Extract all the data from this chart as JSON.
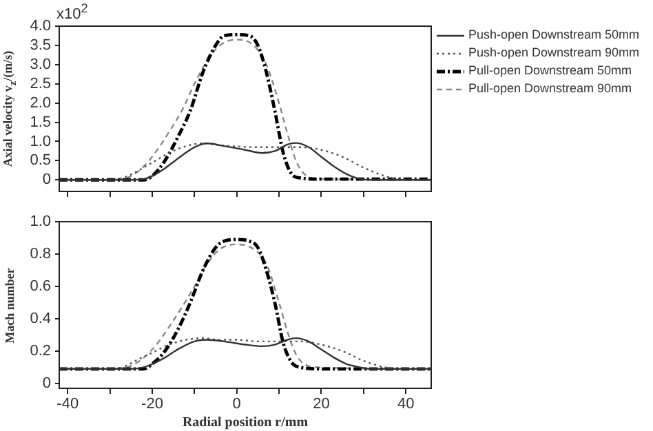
{
  "chart_data": [
    {
      "type": "line",
      "ylabel": "Axial velocity v$_{z}$/(m/s)",
      "annotations": [
        "x10$^{2}$"
      ],
      "xlim": [
        -42,
        46
      ],
      "xticks": [
        {
          "value": -40,
          "label": null
        },
        {
          "value": -30,
          "label": null
        },
        {
          "value": -20,
          "label": null
        },
        {
          "value": -10,
          "label": null
        },
        {
          "value": 0,
          "label": null
        },
        {
          "value": 10,
          "label": null
        },
        {
          "value": 20,
          "label": null
        },
        {
          "value": 30,
          "label": null
        },
        {
          "value": 40,
          "label": null
        }
      ],
      "ylim": [
        -0.3,
        4.0
      ],
      "yticks": [
        0,
        0.5,
        {
          "value": 1,
          "label": "1.0"
        },
        1.5,
        {
          "value": 2,
          "label": "2.0"
        },
        2.5,
        {
          "value": 3,
          "label": "3.0"
        },
        3.5,
        {
          "value": 4,
          "label": "4.0"
        }
      ],
      "tick_labels": "y",
      "grid": false,
      "legend": "right",
      "marker": "none",
      "series": [
        {
          "name": "Push-open Downstream 50mm",
          "color": "#333333",
          "line_style": "solid",
          "x": [
            -42,
            -25,
            -22,
            -20,
            -17,
            -14,
            -10,
            -7,
            -3,
            2,
            6,
            9,
            12,
            14,
            17,
            20,
            23,
            26,
            29,
            32,
            46
          ],
          "values": [
            0,
            0,
            0.02,
            0.1,
            0.3,
            0.55,
            0.85,
            0.95,
            0.88,
            0.78,
            0.7,
            0.75,
            0.92,
            0.96,
            0.85,
            0.6,
            0.35,
            0.15,
            0.03,
            0,
            0
          ]
        },
        {
          "name": "Push-open Downstream 90mm",
          "color": "#555555",
          "line_style": "dotted",
          "x": [
            -42,
            -30,
            -27,
            -24,
            -20,
            -16,
            -12,
            -8,
            -4,
            0,
            5,
            10,
            15,
            20,
            25,
            30,
            35,
            38,
            46
          ],
          "values": [
            0,
            0,
            0.05,
            0.2,
            0.45,
            0.7,
            0.88,
            0.95,
            0.9,
            0.87,
            0.85,
            0.85,
            0.85,
            0.78,
            0.6,
            0.32,
            0.1,
            0.02,
            0
          ]
        },
        {
          "name": "Pull-open Downstream 50mm",
          "color": "#000000",
          "line_style": "dashdot",
          "x": [
            -42,
            -22,
            -20,
            -17,
            -14,
            -11,
            -8,
            -5,
            -3,
            0,
            3,
            5,
            7,
            9,
            11,
            13,
            15,
            20,
            46
          ],
          "values": [
            0,
            0,
            0.1,
            0.5,
            1.1,
            1.8,
            2.8,
            3.5,
            3.75,
            3.78,
            3.75,
            3.5,
            2.8,
            1.8,
            0.7,
            0.15,
            0.05,
            0.02,
            0.02
          ]
        },
        {
          "name": "Pull-open Downstream 90mm",
          "color": "#888888",
          "line_style": "dashed",
          "x": [
            -42,
            -28,
            -25,
            -22,
            -19,
            -16,
            -13,
            -10,
            -7,
            -4,
            0,
            4,
            7,
            10,
            12,
            14,
            16,
            19,
            46
          ],
          "values": [
            0,
            0,
            0.1,
            0.35,
            0.75,
            1.25,
            1.8,
            2.5,
            3.1,
            3.5,
            3.65,
            3.5,
            3.0,
            2.0,
            1.2,
            0.5,
            0.15,
            0.03,
            0
          ]
        }
      ]
    },
    {
      "type": "line",
      "xlabel": "Radial position r/mm",
      "ylabel": "Mach number",
      "xlim": [
        -42,
        46
      ],
      "xticks": [
        {
          "value": -40,
          "label": "-40"
        },
        {
          "value": -30,
          "label": null
        },
        {
          "value": -20,
          "label": "-20"
        },
        {
          "value": -10,
          "label": null
        },
        0,
        {
          "value": 10,
          "label": null
        },
        20,
        {
          "value": 30,
          "label": null
        },
        40
      ],
      "ylim": [
        -0.03,
        1.0
      ],
      "yticks": [
        0,
        0.2,
        0.4,
        0.6,
        0.8,
        {
          "value": 1,
          "label": "1.0"
        }
      ],
      "grid": false,
      "marker": "none",
      "series": [
        {
          "color": "#333333",
          "line_style": "solid",
          "x": [
            -42,
            -25,
            -22,
            -20,
            -17,
            -14,
            -10,
            -7,
            -3,
            2,
            6,
            9,
            12,
            14,
            17,
            20,
            23,
            26,
            29,
            32,
            46
          ],
          "values": [
            0.09,
            0.09,
            0.1,
            0.12,
            0.16,
            0.21,
            0.26,
            0.27,
            0.26,
            0.24,
            0.23,
            0.24,
            0.27,
            0.28,
            0.26,
            0.21,
            0.16,
            0.12,
            0.1,
            0.09,
            0.09
          ]
        },
        {
          "color": "#555555",
          "line_style": "dotted",
          "x": [
            -42,
            -30,
            -27,
            -24,
            -20,
            -16,
            -12,
            -8,
            -4,
            0,
            5,
            10,
            15,
            20,
            25,
            30,
            35,
            38,
            46
          ],
          "values": [
            0.09,
            0.09,
            0.1,
            0.14,
            0.19,
            0.24,
            0.27,
            0.28,
            0.27,
            0.27,
            0.26,
            0.26,
            0.26,
            0.24,
            0.2,
            0.14,
            0.1,
            0.09,
            0.09
          ]
        },
        {
          "color": "#000000",
          "line_style": "dashdot",
          "x": [
            -42,
            -22,
            -20,
            -17,
            -14,
            -11,
            -8,
            -5,
            -3,
            0,
            3,
            5,
            7,
            9,
            11,
            13,
            15,
            20,
            46
          ],
          "values": [
            0.09,
            0.09,
            0.12,
            0.2,
            0.33,
            0.5,
            0.7,
            0.84,
            0.88,
            0.89,
            0.88,
            0.84,
            0.7,
            0.5,
            0.25,
            0.13,
            0.1,
            0.09,
            0.09
          ]
        },
        {
          "color": "#888888",
          "line_style": "dashed",
          "x": [
            -42,
            -28,
            -25,
            -22,
            -19,
            -16,
            -13,
            -10,
            -7,
            -4,
            0,
            4,
            7,
            10,
            12,
            14,
            16,
            19,
            46
          ],
          "values": [
            0.09,
            0.09,
            0.11,
            0.16,
            0.24,
            0.35,
            0.47,
            0.6,
            0.74,
            0.83,
            0.86,
            0.83,
            0.74,
            0.5,
            0.32,
            0.18,
            0.12,
            0.1,
            0.09
          ]
        }
      ]
    }
  ]
}
